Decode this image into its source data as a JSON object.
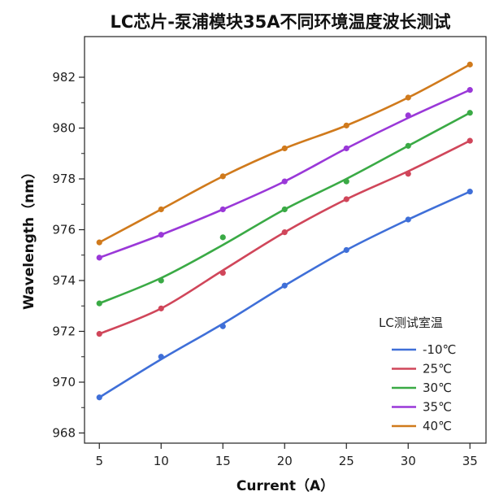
{
  "chart_data": {
    "type": "line",
    "title": "LC芯片-泵浦模块35A不同环境温度波长测试",
    "xlabel": "Current（A）",
    "ylabel": "Wavelength（nm）",
    "xlim": [
      3.8,
      36.3
    ],
    "ylim": [
      967.6,
      983.6
    ],
    "x_ticks": [
      5,
      10,
      15,
      20,
      25,
      30,
      35
    ],
    "y_ticks": [
      968,
      970,
      972,
      974,
      976,
      978,
      980,
      982
    ],
    "x": [
      5,
      10,
      15,
      20,
      25,
      30,
      35
    ],
    "legend_title": "LC测试室温",
    "legend_position": "bottom-right",
    "grid": false,
    "series": [
      {
        "name": "-10℃",
        "color": "#3f6fd8",
        "points": [
          969.4,
          971.0,
          972.2,
          973.8,
          975.2,
          976.4,
          977.5
        ],
        "fit": [
          969.4,
          970.9,
          972.3,
          973.8,
          975.2,
          976.4,
          977.5
        ]
      },
      {
        "name": "25℃",
        "color": "#d0465a",
        "points": [
          971.9,
          972.9,
          974.3,
          975.9,
          977.2,
          978.2,
          979.5
        ],
        "fit": [
          971.9,
          972.9,
          974.4,
          975.9,
          977.2,
          978.3,
          979.5
        ]
      },
      {
        "name": "30℃",
        "color": "#3aaa45",
        "points": [
          973.1,
          974.0,
          975.7,
          976.8,
          977.9,
          979.3,
          980.6
        ],
        "fit": [
          973.1,
          974.1,
          975.4,
          976.8,
          978.0,
          979.3,
          980.6
        ]
      },
      {
        "name": "35℃",
        "color": "#9a38d8",
        "points": [
          974.9,
          975.8,
          976.8,
          977.9,
          979.2,
          980.5,
          981.5
        ],
        "fit": [
          974.9,
          975.8,
          976.8,
          977.9,
          979.2,
          980.4,
          981.5
        ]
      },
      {
        "name": "40℃",
        "color": "#d07a1c",
        "points": [
          975.5,
          976.8,
          978.1,
          979.2,
          980.1,
          981.2,
          982.5
        ],
        "fit": [
          975.5,
          976.8,
          978.1,
          979.2,
          980.1,
          981.2,
          982.5
        ]
      }
    ]
  }
}
